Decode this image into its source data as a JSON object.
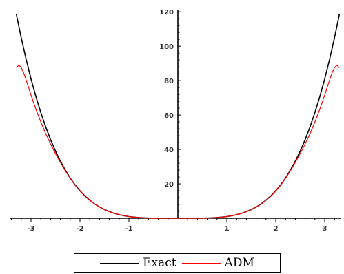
{
  "chart_data": {
    "type": "line",
    "title": "",
    "xlabel": "",
    "ylabel": "",
    "xlim": [
      -3.4,
      3.4
    ],
    "ylim": [
      0,
      122
    ],
    "x_ticks": [
      "-3",
      "-2",
      "-1",
      "1",
      "2",
      "3"
    ],
    "y_ticks": [
      "20",
      "40",
      "60",
      "80",
      "100",
      "120"
    ],
    "grid": false,
    "legend_position": "bottom",
    "series": [
      {
        "name": "Exact",
        "color": "#000000",
        "x": [
          -3.3,
          -3.2,
          -3.1,
          -3.0,
          -2.9,
          -2.8,
          -2.7,
          -2.6,
          -2.5,
          -2.4,
          -2.3,
          -2.2,
          -2.1,
          -2.0,
          -1.9,
          -1.8,
          -1.7,
          -1.6,
          -1.5,
          -1.4,
          -1.3,
          -1.2,
          -1.1,
          -1.0,
          -0.9,
          -0.8,
          -0.7,
          -0.6,
          -0.5,
          -0.4,
          -0.3,
          -0.2,
          -0.1,
          0.0,
          0.1,
          0.2,
          0.3,
          0.4,
          0.5,
          0.6,
          0.7,
          0.8,
          0.9,
          1.0,
          1.1,
          1.2,
          1.3,
          1.4,
          1.5,
          1.6,
          1.7,
          1.8,
          1.9,
          2.0,
          2.1,
          2.2,
          2.3,
          2.4,
          2.5,
          2.6,
          2.7,
          2.8,
          2.9,
          3.0,
          3.1,
          3.2,
          3.3
        ],
        "values": [
          118.6,
          104.9,
          92.4,
          81.0,
          70.7,
          61.5,
          53.1,
          45.7,
          39.1,
          33.2,
          28.0,
          23.4,
          19.4,
          16.0,
          13.0,
          10.5,
          8.35,
          6.55,
          5.06,
          3.84,
          2.86,
          2.07,
          1.46,
          1.0,
          0.66,
          0.41,
          0.24,
          0.13,
          0.06,
          0.03,
          0.01,
          0.0,
          0.0,
          0.0,
          0.0,
          0.0,
          0.01,
          0.03,
          0.06,
          0.13,
          0.24,
          0.41,
          0.66,
          1.0,
          1.46,
          2.07,
          2.86,
          3.84,
          5.06,
          6.55,
          8.35,
          10.5,
          13.0,
          16.0,
          19.4,
          23.4,
          28.0,
          33.2,
          39.1,
          45.7,
          53.1,
          61.5,
          70.7,
          81.0,
          92.4,
          104.9,
          118.6
        ]
      },
      {
        "name": "ADM",
        "color": "#ff0000",
        "x": [
          -3.3,
          -3.25,
          -3.2,
          -3.15,
          -3.1,
          -3.05,
          -3.0,
          -2.9,
          -2.8,
          -2.7,
          -2.6,
          -2.5,
          -2.4,
          -2.3,
          -2.2,
          -2.1,
          -2.0,
          -1.9,
          -1.8,
          -1.7,
          -1.6,
          -1.5,
          -1.4,
          -1.3,
          -1.2,
          -1.1,
          -1.0,
          -0.9,
          -0.8,
          -0.7,
          -0.6,
          -0.5,
          -0.4,
          -0.3,
          -0.2,
          -0.1,
          0.0,
          0.1,
          0.2,
          0.3,
          0.4,
          0.5,
          0.6,
          0.7,
          0.8,
          0.9,
          1.0,
          1.1,
          1.2,
          1.3,
          1.4,
          1.5,
          1.6,
          1.7,
          1.8,
          1.9,
          2.0,
          2.1,
          2.2,
          2.3,
          2.4,
          2.5,
          2.6,
          2.7,
          2.8,
          2.9,
          3.0,
          3.05,
          3.1,
          3.15,
          3.2,
          3.25,
          3.3
        ],
        "values": [
          87.5,
          89.0,
          87.6,
          84.4,
          80.4,
          76.0,
          71.6,
          63.4,
          56.0,
          49.2,
          43.2,
          37.6,
          32.5,
          27.6,
          23.2,
          19.2,
          15.8,
          12.8,
          10.4,
          8.3,
          6.5,
          5.0,
          3.8,
          2.9,
          2.1,
          1.5,
          1.0,
          0.6,
          0.4,
          0.2,
          0.1,
          0.0,
          0.0,
          0.0,
          0.0,
          0.0,
          0.0,
          0.0,
          0.0,
          0.0,
          0.0,
          0.0,
          0.1,
          0.2,
          0.4,
          0.6,
          1.0,
          1.5,
          2.1,
          2.9,
          3.8,
          5.0,
          6.5,
          8.3,
          10.4,
          12.8,
          15.8,
          19.2,
          23.2,
          27.6,
          32.5,
          37.6,
          43.2,
          49.2,
          56.0,
          63.4,
          71.6,
          76.0,
          80.4,
          84.4,
          87.6,
          89.0,
          87.5
        ]
      }
    ]
  }
}
